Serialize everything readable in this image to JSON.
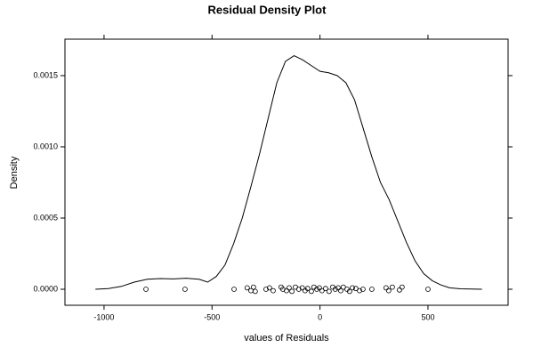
{
  "chart_data": {
    "type": "density",
    "title": "Residual Density Plot",
    "xlabel": "values of Residuals",
    "ylabel": "Density",
    "color": "#000000",
    "xlim": [
      -1181,
      871
    ],
    "ylim": [
      -0.0001125,
      0.001756
    ],
    "xticks": [
      -1000,
      -500,
      0,
      500
    ],
    "yticks": [
      {
        "value": 0,
        "label": "0.0000"
      },
      {
        "value": 0.0005,
        "label": "0.0005"
      },
      {
        "value": 0.001,
        "label": "0.0010"
      },
      {
        "value": 0.0015,
        "label": "0.0015"
      }
    ],
    "x": [
      -1040,
      -980,
      -920,
      -860,
      -800,
      -740,
      -680,
      -620,
      -560,
      -520,
      -480,
      -440,
      -400,
      -360,
      -320,
      -280,
      -240,
      -200,
      -160,
      -120,
      -80,
      -40,
      0,
      40,
      80,
      120,
      160,
      200,
      240,
      280,
      320,
      360,
      400,
      440,
      480,
      520,
      560,
      600,
      650,
      750
    ],
    "y": [
      0,
      5e-06,
      2e-05,
      5e-05,
      7e-05,
      7.5e-05,
      7.3e-05,
      7.7e-05,
      7e-05,
      5e-05,
      9e-05,
      0.00017,
      0.00032,
      0.0005,
      0.00072,
      0.00095,
      0.0012,
      0.00145,
      0.0016,
      0.00164,
      0.00161,
      0.00157,
      0.00153,
      0.00152,
      0.0015,
      0.00145,
      0.00133,
      0.00113,
      0.00093,
      0.00075,
      0.00063,
      0.00048,
      0.00033,
      0.0002,
      0.00011,
      6e-05,
      3e-05,
      1e-05,
      3e-06,
      0
    ],
    "points": {
      "x": [
        -806,
        -625,
        -398,
        -337,
        -320,
        -308,
        -300,
        -250,
        -234,
        -217,
        -180,
        -172,
        -155,
        -143,
        -130,
        -114,
        -98,
        -82,
        -69,
        -57,
        -40,
        -28,
        -15,
        -3,
        9,
        26,
        42,
        59,
        71,
        84,
        96,
        108,
        125,
        137,
        150,
        166,
        183,
        199,
        240,
        306,
        318,
        335,
        368,
        380,
        500
      ],
      "y": [
        0,
        0,
        0,
        1e-05,
        -1e-05,
        1.5e-05,
        -1.5e-05,
        0,
        1e-05,
        -1e-05,
        1.5e-05,
        0,
        -1e-05,
        1e-05,
        -1.5e-05,
        1.5e-05,
        0,
        1e-05,
        -1e-05,
        5e-06,
        -1.5e-05,
        1.5e-05,
        0,
        1e-05,
        -1e-05,
        5e-06,
        -1.5e-05,
        1.5e-05,
        0,
        1e-05,
        -1e-05,
        1.5e-05,
        0,
        -1.5e-05,
        1e-05,
        5e-06,
        -1e-05,
        0,
        0,
        1e-05,
        -1e-05,
        1.5e-05,
        -5e-06,
        1.5e-05,
        0
      ]
    }
  }
}
